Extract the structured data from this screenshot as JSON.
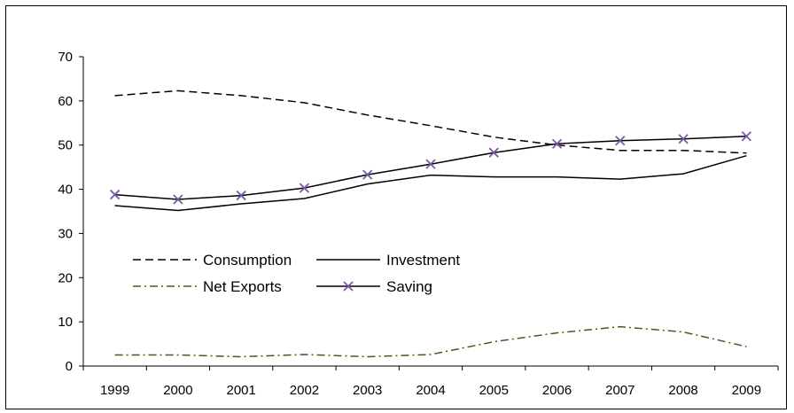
{
  "chart_data": {
    "type": "line",
    "title": "",
    "xlabel": "",
    "ylabel": "",
    "x": [
      "1999",
      "2000",
      "2001",
      "2002",
      "2003",
      "2004",
      "2005",
      "2006",
      "2007",
      "2008",
      "2009"
    ],
    "ylim": [
      0,
      70
    ],
    "yticks": [
      0,
      10,
      20,
      30,
      40,
      50,
      60,
      70
    ],
    "grid": false,
    "legend_position": "center-left",
    "series": [
      {
        "name": "Consumption",
        "style": "dashed",
        "color": "#000000",
        "values": [
          61.2,
          62.3,
          61.2,
          59.6,
          56.8,
          54.4,
          51.8,
          50.0,
          48.8,
          48.8,
          48.2
        ]
      },
      {
        "name": "Investment",
        "style": "solid",
        "color": "#000000",
        "values": [
          36.3,
          35.2,
          36.7,
          37.9,
          41.2,
          43.2,
          42.8,
          42.8,
          42.3,
          43.5,
          47.6
        ]
      },
      {
        "name": "Net Exports",
        "style": "dashdot",
        "color": "#4a5a1f",
        "values": [
          2.5,
          2.5,
          2.1,
          2.6,
          2.1,
          2.6,
          5.5,
          7.5,
          8.9,
          7.7,
          4.4
        ]
      },
      {
        "name": "Saving",
        "style": "solid-marker-x",
        "color": "#000000",
        "marker_color": "#7b5aa6",
        "values": [
          38.8,
          37.7,
          38.6,
          40.3,
          43.3,
          45.7,
          48.3,
          50.3,
          51.0,
          51.4,
          52.0
        ]
      }
    ]
  }
}
